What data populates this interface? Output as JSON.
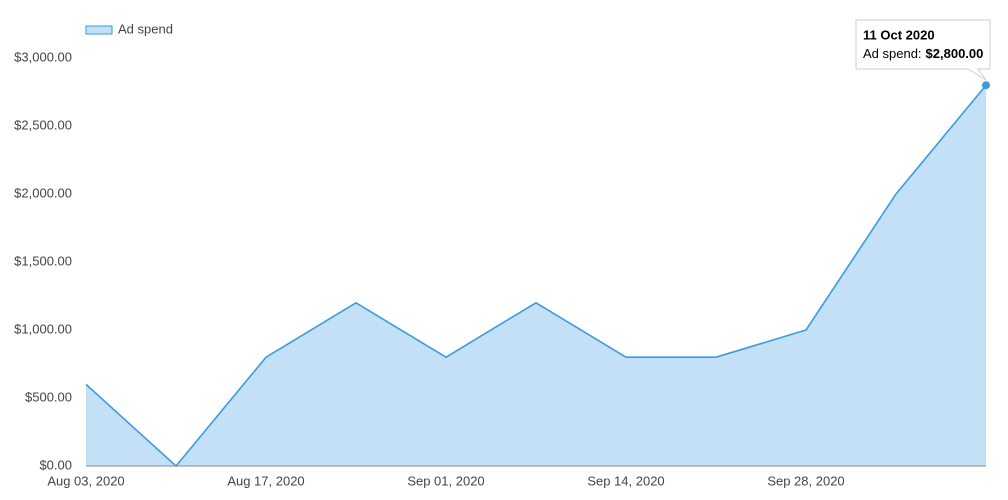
{
  "chart_data": {
    "type": "area",
    "categories": [
      "Aug 03, 2020",
      null,
      "Aug 17, 2020",
      null,
      "Sep 01, 2020",
      null,
      "Sep 14, 2020",
      null,
      "Sep 28, 2020",
      null,
      null
    ],
    "series": [
      {
        "name": "Ad spend",
        "color": "#3d9ae0",
        "fill": "#c3e0f6",
        "values": [
          600,
          0,
          800,
          1200,
          800,
          1200,
          800,
          800,
          1000,
          2000,
          2800
        ]
      }
    ],
    "ylim": [
      0,
      3000
    ],
    "yticks": [
      {
        "value": 0,
        "label": "$0.00"
      },
      {
        "value": 500,
        "label": "$500.00"
      },
      {
        "value": 1000,
        "label": "$1,000.00"
      },
      {
        "value": 1500,
        "label": "$1,500.00"
      },
      {
        "value": 2000,
        "label": "$2,000.00"
      },
      {
        "value": 2500,
        "label": "$2,500.00"
      },
      {
        "value": 3000,
        "label": "$3,000.00"
      }
    ],
    "legend": "top-left",
    "tooltip": {
      "date": "11 Oct 2020",
      "series_label": "Ad spend:",
      "value_label": "$2,800.00"
    }
  }
}
